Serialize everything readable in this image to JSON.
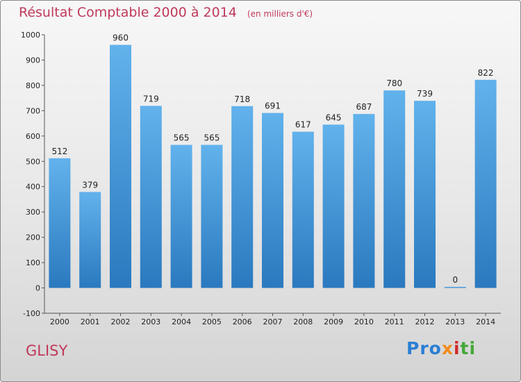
{
  "chart_data": {
    "type": "bar",
    "title": "Résultat Comptable 2000 à 2014",
    "subtitle": "(en milliers d'€)",
    "categories": [
      "2000",
      "2001",
      "2002",
      "2003",
      "2004",
      "2005",
      "2006",
      "2007",
      "2008",
      "2009",
      "2010",
      "2011",
      "2012",
      "2013",
      "2014"
    ],
    "values": [
      512,
      379,
      960,
      719,
      565,
      565,
      718,
      691,
      617,
      645,
      687,
      780,
      739,
      0,
      822
    ],
    "ylim": [
      -100,
      1000
    ],
    "yticks": [
      -100,
      0,
      100,
      200,
      300,
      400,
      500,
      600,
      700,
      800,
      900,
      1000
    ],
    "grid": false,
    "colors": {
      "bar_top": "#62b2ec",
      "bar_bottom": "#2a79bf",
      "title": "#c0395a"
    }
  },
  "commune": "GLISY",
  "logo": {
    "p1": "Pro",
    "p2": "x",
    "p3": "i",
    "p4": "ti"
  }
}
